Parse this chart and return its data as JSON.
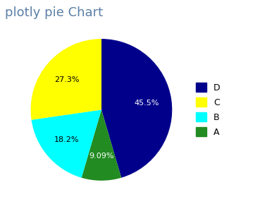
{
  "title": "plotly pie Chart",
  "title_color": "#5b7fa6",
  "title_fontsize": 13,
  "labels": [
    "D",
    "A",
    "B",
    "C"
  ],
  "values": [
    45.5,
    9.09,
    18.2,
    27.3
  ],
  "colors": [
    "#00008B",
    "#228B22",
    "#00FFFF",
    "#FFFF00"
  ],
  "pct_labels": [
    "45.5%",
    "9.09%",
    "18.2%",
    "27.3%"
  ],
  "pct_colors": [
    "white",
    "white",
    "black",
    "black"
  ],
  "startangle": 90,
  "counterclock": false,
  "pctdistance": 0.65,
  "legend_labels": [
    "D",
    "C",
    "B",
    "A"
  ],
  "legend_colors": [
    "#00008B",
    "#FFFF00",
    "#00FFFF",
    "#228B22"
  ],
  "background_color": "#ffffff"
}
